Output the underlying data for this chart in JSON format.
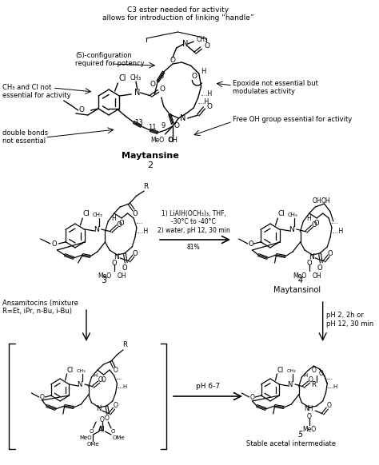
{
  "background_color": "#ffffff",
  "figsize": [
    4.74,
    5.82
  ],
  "dpi": 100,
  "text": {
    "top_annot": "C3 ester needed for activity\nallows for introduction of linking “handle”",
    "s_config": "(S)-configuration\nrequired for potency",
    "ch3_cl": "CH₃ and Cl not\nessential for activity",
    "double_bonds": "double bonds\nnot essential",
    "epoxide": "Epoxide not essential but\nmodulates activity",
    "free_oh": "Free OH group essential for activity",
    "maytansine": "Maytansine",
    "num2": "2",
    "reaction": "1) LiAlH(OCH₃)₃, THF,\n-30°C to -40°C\n2) water, pH 12, 30 min",
    "yield": "81%",
    "num3": "3",
    "ansamitocins": "Ansamitocins (mixture\nR=Et, iPr, n-Bu, i-Bu)",
    "num4": "4",
    "maytansinol": "Maytansinol",
    "ph_cond": "pH 2, 2h or\npH 12, 30 min",
    "ph67": "pH 6-7",
    "num5": "5",
    "stable": "Stable acetal intermediate"
  }
}
